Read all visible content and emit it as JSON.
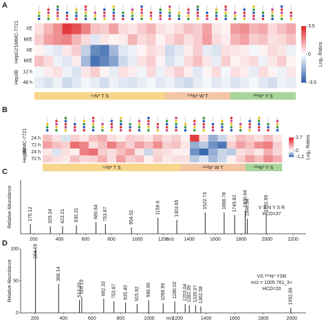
{
  "chart_data": [
    {
      "type": "heatmap",
      "panel_label": "A",
      "rows": [
        "I/E",
        "M/E",
        "I/E",
        "M/E",
        "12 h",
        "48 h"
      ],
      "row_groups": [
        {
          "label": "SMMC-7721",
          "count": 2
        },
        {
          "label": "HepG2",
          "count": 2
        },
        {
          "label": "Hep3B",
          "count": 2
        }
      ],
      "sites": [
        {
          "label": "⁶⁹N* T S",
          "count": 14,
          "color": "#f7d68c"
        },
        {
          "label": "¹⁰¹N* W T",
          "count": 7,
          "color": "#f3c6a6"
        },
        {
          "label": "²⁰¹N* Y S",
          "count": 7,
          "color": "#a9d49a"
        }
      ],
      "matrix": [
        [
          0.5,
          1.2,
          1.8,
          3.2,
          2.8,
          2.0,
          1.0,
          0.8,
          1.5,
          0.6,
          0.4,
          0.8,
          1.2,
          0.5,
          0.3,
          0.6,
          1.0,
          0.8,
          1.5,
          0.4,
          0.2,
          1.6,
          1.8,
          1.2,
          1.4,
          0.6,
          1.0,
          1.4
        ],
        [
          0.8,
          1.5,
          1.8,
          2.0,
          1.2,
          0.6,
          -0.5,
          0.4,
          0.2,
          0.3,
          1.2,
          0.6,
          0.8,
          0.2,
          0.6,
          1.0,
          0.5,
          0.8,
          1.6,
          0.6,
          0.3,
          1.2,
          1.5,
          0.8,
          1.0,
          0.5,
          0.6,
          1.0
        ],
        [
          0.2,
          -0.3,
          -0.5,
          0.4,
          0.8,
          -1.0,
          -2.5,
          -2.8,
          -1.5,
          -0.5,
          -0.3,
          0.2,
          0.6,
          0.4,
          -0.8,
          -0.5,
          0.3,
          0.8,
          -0.4,
          -0.6,
          0.5,
          0.4,
          0.3,
          -0.2,
          0.2,
          0.6,
          0.4,
          -0.3
        ],
        [
          1.0,
          0.6,
          -0.3,
          -0.5,
          0.3,
          -1.5,
          -3.0,
          -2.6,
          -2.0,
          -0.8,
          -0.4,
          0.5,
          0.8,
          0.2,
          -0.6,
          -0.3,
          0.6,
          1.0,
          0.4,
          -0.4,
          0.8,
          0.2,
          0.4,
          0.6,
          -0.3,
          0.4,
          0.8,
          0.2
        ],
        [
          -0.2,
          0.3,
          0.5,
          -0.3,
          -0.6,
          0.4,
          0.8,
          0.2,
          -0.4,
          0.5,
          0.3,
          -0.2,
          0.6,
          -0.3,
          0.4,
          0.8,
          0.3,
          -0.5,
          0.2,
          0.6,
          -0.2,
          0.5,
          0.3,
          -0.4,
          0.6,
          0.2,
          -0.3,
          0.4
        ],
        [
          -0.4,
          -0.6,
          -0.3,
          -0.8,
          -0.5,
          -0.2,
          -0.4,
          -0.7,
          -0.3,
          -0.5,
          -0.6,
          -0.4,
          -0.2,
          -0.5,
          -0.3,
          -0.6,
          -0.8,
          -0.4,
          -0.2,
          -0.5,
          -0.3,
          -0.6,
          -0.4,
          -0.2,
          -0.5,
          -0.7,
          -0.3,
          -0.4
        ]
      ],
      "clim": [
        -3.5,
        3.5
      ],
      "cticks": [
        3.5,
        0,
        -3.5
      ],
      "colorbar_label": "Log₂ Ratios",
      "colors": {
        "low": "#2a5ca8",
        "mid": "#ffffff",
        "high": "#e0262b"
      }
    },
    {
      "type": "heatmap",
      "panel_label": "B",
      "rows": [
        "24 h",
        "72 h",
        "24 h",
        "72 h"
      ],
      "row_groups": [
        {
          "label": "SMMC-7721",
          "count": 2
        },
        {
          "label": "Hep3B",
          "count": 2
        }
      ],
      "sites": [
        {
          "label": "⁶⁹N* T S",
          "count": 15,
          "color": "#f7d68c"
        },
        {
          "label": "¹⁰¹N* W T",
          "count": 7,
          "color": "#f3c6a6"
        },
        {
          "label": "²⁰¹N* Y S",
          "count": 4,
          "color": "#a9d49a"
        }
      ],
      "matrix": [
        [
          0.8,
          0.4,
          -0.2,
          0.6,
          0.3,
          0.8,
          1.0,
          0.4,
          0.2,
          0.6,
          0.5,
          0.3,
          0.8,
          0.4,
          0.6,
          0.2,
          2.4,
          0.4,
          -0.6,
          -0.3,
          0.3,
          0.8,
          0.6,
          0.4,
          0.8,
          0.3
        ],
        [
          1.2,
          0.8,
          0.6,
          1.8,
          1.5,
          0.4,
          0.8,
          1.6,
          1.0,
          0.6,
          1.2,
          0.8,
          1.4,
          0.6,
          0.8,
          0.3,
          -0.6,
          -0.4,
          -0.8,
          -1.0,
          0.6,
          1.2,
          0.8,
          1.4,
          1.6,
          0.6
        ],
        [
          0.3,
          -0.2,
          0.4,
          0.2,
          1.6,
          1.8,
          0.6,
          0.4,
          0.8,
          1.2,
          0.3,
          -0.3,
          0.5,
          0.4,
          0.2,
          0.2,
          -0.8,
          -1.1,
          -0.6,
          -0.3,
          -0.4,
          0.4,
          0.6,
          0.3,
          1.0,
          0.5
        ],
        [
          0.6,
          0.4,
          0.3,
          0.8,
          0.5,
          0.6,
          1.0,
          0.4,
          1.2,
          0.6,
          0.8,
          0.2,
          0.6,
          0.3,
          0.4,
          0.4,
          -0.4,
          -0.2,
          -0.5,
          -0.3,
          0.2,
          0.6,
          1.2,
          0.8,
          1.4,
          1.0
        ]
      ],
      "clim": [
        -1.2,
        2.7
      ],
      "cticks": [
        2.7,
        0,
        -1.2
      ],
      "colorbar_label": "Log₂ Ratios",
      "colors": {
        "low": "#2a5ca8",
        "mid": "#ffffff",
        "high": "#e0262b"
      }
    },
    {
      "type": "spectrum",
      "panel_label": "C",
      "xlabel": "m/z",
      "ylabel": "Relative Abundance",
      "x": [
        175.12,
        329.24,
        423.21,
        530.31,
        680.84,
        753.87,
        954.52,
        1158.6,
        1303.65,
        1522.73,
        1668.78,
        1749.82,
        1830.84,
        1846.84,
        1992.89
      ],
      "x_labels": [
        "175.12",
        "329.24",
        "423.21",
        "530.31",
        "680.84",
        "753.87",
        "954.52",
        "1158.6",
        "1303.65",
        "1522.73",
        "1668.78",
        "1749.82",
        "1830.84",
        "1846.84",
        "1992.89"
      ],
      "values": [
        18,
        14,
        14,
        16,
        22,
        18,
        12,
        30,
        26,
        40,
        40,
        35,
        44,
        28,
        35
      ],
      "xlim": [
        100,
        2300
      ],
      "xticks": [
        200,
        400,
        600,
        800,
        1000,
        1200,
        1400,
        1600,
        1800,
        2000,
        2200
      ],
      "ylim": [
        0,
        100
      ],
      "color": "#222222",
      "label_color": "#9c2a9a",
      "annotations": [
        "V S N Y S R",
        "HCD=37"
      ]
    },
    {
      "type": "spectrum",
      "panel_label": "D",
      "xlabel": "m/z",
      "ylabel": "Relative Abundance",
      "x": [
        204.09,
        366.14,
        512.2,
        528.19,
        682.33,
        753.87,
        835.4,
        915.92,
        996.95,
        1098.99,
        1180.02,
        1253.04,
        1282.06,
        1326.07,
        1362.58,
        1992.89
      ],
      "x_labels": [
        "204.09",
        "366.14",
        "512.20",
        "528.19",
        "682.33",
        "753.87",
        "835.40",
        "915.92",
        "996.95",
        "1098.99",
        "1180.02",
        "1253.04",
        "1282.06",
        "1326.07",
        "1362.58",
        "1992.89"
      ],
      "values": [
        100,
        45,
        20,
        25,
        22,
        18,
        16,
        14,
        20,
        15,
        18,
        14,
        12,
        12,
        10,
        8
      ],
      "xlim": [
        100,
        2100
      ],
      "xticks": [
        200,
        400,
        600,
        800,
        1000,
        1200,
        1400,
        1600,
        1800,
        2000
      ],
      "ylim": [
        0,
        100
      ],
      "yticks": [
        0,
        50,
        100
      ],
      "color": "#222222",
      "label_color": "#9c2a9a",
      "annotations": [
        "VS ²⁰¹N* YSR",
        "m/z = 1005.761_3+",
        "HCD=20"
      ]
    }
  ]
}
